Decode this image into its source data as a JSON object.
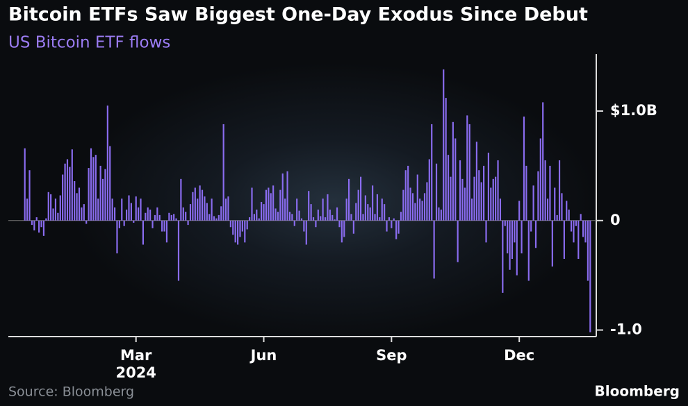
{
  "chart_data": {
    "type": "bar",
    "title": "Bitcoin ETFs Saw Biggest One-Day Exodus Since Debut",
    "subtitle": "US Bitcoin ETF flows",
    "source": "Source: Bloomberg",
    "brand": "Bloomberg",
    "color": "#8a6cf0",
    "ylim": [
      -1.06,
      1.52
    ],
    "yticks": [
      {
        "value": 1,
        "label": "$1.0B"
      },
      0,
      {
        "value": -1,
        "label": "-1.0"
      }
    ],
    "x_year_label": "2024",
    "categories": [
      null,
      null,
      null,
      null,
      null,
      null,
      null,
      null,
      null,
      null,
      null,
      null,
      null,
      null,
      null,
      null,
      null,
      null,
      null,
      null,
      null,
      null,
      null,
      null,
      null,
      null,
      null,
      null,
      null,
      null,
      null,
      null,
      null,
      null,
      null,
      null,
      null,
      null,
      null,
      null,
      null,
      null,
      null,
      null,
      null,
      null,
      null,
      "Mar",
      null,
      null,
      null,
      null,
      null,
      null,
      null,
      null,
      null,
      null,
      null,
      null,
      null,
      null,
      null,
      null,
      null,
      null,
      null,
      null,
      null,
      null,
      null,
      null,
      null,
      null,
      null,
      null,
      null,
      null,
      null,
      null,
      null,
      null,
      null,
      null,
      null,
      null,
      null,
      null,
      null,
      null,
      null,
      null,
      null,
      null,
      null,
      null,
      null,
      null,
      null,
      null,
      null,
      "Jun",
      null,
      null,
      null,
      null,
      null,
      null,
      null,
      null,
      null,
      null,
      null,
      null,
      null,
      null,
      null,
      null,
      null,
      null,
      null,
      null,
      null,
      null,
      null,
      null,
      null,
      null,
      null,
      null,
      null,
      null,
      null,
      null,
      null,
      null,
      null,
      null,
      null,
      null,
      null,
      null,
      null,
      null,
      null,
      null,
      null,
      null,
      null,
      null,
      null,
      null,
      null,
      null,
      null,
      "Sep",
      null,
      null,
      null,
      null,
      null,
      null,
      null,
      null,
      null,
      null,
      null,
      null,
      null,
      null,
      null,
      null,
      null,
      null,
      null,
      null,
      null,
      null,
      null,
      null,
      null,
      null,
      null,
      null,
      null,
      null,
      null,
      null,
      null,
      null,
      null,
      null,
      null,
      null,
      null,
      null,
      null,
      null,
      null,
      null,
      null,
      null,
      null,
      null,
      null,
      null,
      null,
      null,
      null,
      "Dec",
      null,
      null,
      null,
      null,
      null,
      null,
      null,
      null,
      null,
      null,
      null,
      null,
      null,
      null,
      null,
      null,
      null,
      null,
      null,
      null,
      null,
      null,
      null,
      null,
      null,
      null,
      null,
      null,
      null,
      null
    ],
    "values": [
      0.66,
      0.2,
      0.46,
      -0.04,
      -0.09,
      0.03,
      -0.11,
      -0.06,
      -0.14,
      0.02,
      0.26,
      0.24,
      0.11,
      0.2,
      0.07,
      0.23,
      0.42,
      0.52,
      0.56,
      0.49,
      0.65,
      0.36,
      0.25,
      0.3,
      0.12,
      0.15,
      -0.03,
      0.48,
      0.66,
      0.58,
      0.6,
      0.2,
      0.5,
      0.38,
      0.47,
      1.05,
      0.68,
      0.2,
      0.12,
      -0.3,
      -0.07,
      0.2,
      -0.05,
      0.1,
      0.23,
      0.16,
      -0.02,
      0.22,
      0.12,
      0.2,
      -0.22,
      0.07,
      0.12,
      0.1,
      -0.07,
      0.05,
      0.12,
      0.05,
      -0.1,
      -0.1,
      -0.2,
      0.07,
      0.05,
      0.06,
      0.02,
      -0.55,
      0.38,
      0.12,
      0.08,
      -0.04,
      0.15,
      0.26,
      0.3,
      0.2,
      0.32,
      0.28,
      0.22,
      0.16,
      0.06,
      0.2,
      0.04,
      0.02,
      0.05,
      0.13,
      0.88,
      0.2,
      0.22,
      -0.06,
      -0.13,
      -0.2,
      -0.22,
      -0.15,
      -0.1,
      -0.2,
      -0.08,
      0.03,
      0.3,
      0.06,
      0.1,
      0.02,
      0.17,
      0.15,
      0.28,
      0.3,
      0.25,
      0.32,
      0.11,
      0.08,
      0.28,
      0.43,
      0.2,
      0.45,
      0.08,
      0.06,
      -0.05,
      0.2,
      0.09,
      0.02,
      -0.1,
      -0.22,
      0.27,
      0.15,
      0.03,
      -0.06,
      0.1,
      0.04,
      0.2,
      0.03,
      0.24,
      0.1,
      0.05,
      0.01,
      0.12,
      -0.06,
      -0.2,
      -0.15,
      0.2,
      0.38,
      0.06,
      -0.12,
      0.16,
      0.28,
      0.4,
      0.06,
      0.23,
      0.15,
      0.12,
      0.32,
      0.06,
      0.24,
      0.03,
      0.2,
      0.15,
      -0.1,
      0.03,
      -0.07,
      0.02,
      -0.17,
      -0.12,
      0.08,
      0.28,
      0.46,
      0.5,
      0.3,
      0.25,
      0.16,
      0.42,
      0.2,
      0.18,
      0.25,
      0.35,
      0.56,
      0.88,
      -0.53,
      0.52,
      0.12,
      0.1,
      1.38,
      1.12,
      0.6,
      0.4,
      0.9,
      0.75,
      -0.38,
      0.55,
      0.38,
      0.3,
      0.96,
      0.88,
      0.2,
      0.4,
      0.72,
      0.46,
      0.35,
      0.5,
      -0.2,
      0.62,
      0.3,
      0.38,
      0.4,
      0.55,
      0.2,
      -0.66,
      -0.05,
      -0.3,
      -0.45,
      -0.35,
      -0.2,
      -0.5,
      0.18,
      -0.3,
      0.95,
      0.5,
      -0.55,
      -0.1,
      0.32,
      -0.25,
      0.45,
      0.75,
      1.08,
      0.55,
      0.2,
      0.5,
      -0.42,
      0.3,
      0.05,
      0.55,
      0.25,
      -0.35,
      0.18,
      0.1,
      -0.1,
      -0.2,
      -0.05,
      -0.35,
      0.06,
      -0.15,
      -0.2,
      -0.55,
      -1.02
    ]
  }
}
